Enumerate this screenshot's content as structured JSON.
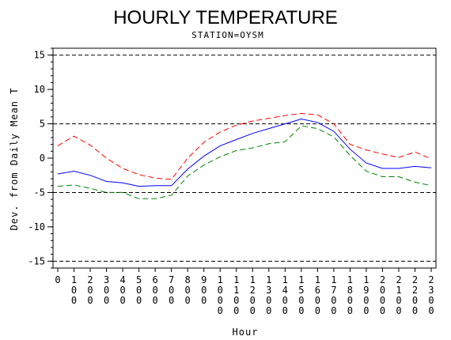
{
  "chart_data": {
    "type": "line",
    "title": "HOURLY TEMPERATURE",
    "subtitle": "STATION=OYSM",
    "xlabel": "Hour",
    "ylabel": "Dev. from Daily Mean T",
    "ylim": [
      -16,
      16
    ],
    "yticks": [
      15,
      10,
      5,
      0,
      -5,
      -10,
      -15
    ],
    "reference_lines": [
      15,
      5,
      -5,
      -15
    ],
    "x": [
      0,
      100,
      200,
      300,
      400,
      500,
      600,
      700,
      800,
      900,
      1000,
      1100,
      1200,
      1300,
      1400,
      1500,
      1600,
      1700,
      1800,
      1900,
      2000,
      2100,
      2200,
      2300
    ],
    "x_tick_labels": [
      "0",
      "100",
      "200",
      "300",
      "400",
      "500",
      "600",
      "700",
      "800",
      "900",
      "1000",
      "1100",
      "1200",
      "1300",
      "1400",
      "1500",
      "1600",
      "1700",
      "1800",
      "1900",
      "2000",
      "2100",
      "2200",
      "2300"
    ],
    "colors": {
      "upper": "#ff0000",
      "mean": "#0000ff",
      "lower": "#008000",
      "reference": "#000000"
    },
    "series": [
      {
        "key": "upper",
        "style": "dashed",
        "values": [
          1.8,
          3.2,
          1.9,
          0.0,
          -1.5,
          -2.4,
          -2.9,
          -3.1,
          0.0,
          2.3,
          3.8,
          4.8,
          5.4,
          5.8,
          6.2,
          6.5,
          6.3,
          5.0,
          2.0,
          1.2,
          0.6,
          0.1,
          0.9,
          -0.1
        ]
      },
      {
        "key": "mean",
        "style": "solid",
        "values": [
          -2.3,
          -1.9,
          -2.5,
          -3.4,
          -3.6,
          -4.1,
          -4.0,
          -4.0,
          -1.6,
          0.3,
          1.8,
          2.7,
          3.6,
          4.3,
          5.0,
          5.7,
          5.2,
          3.9,
          1.3,
          -0.7,
          -1.5,
          -1.5,
          -1.2,
          -1.4
        ]
      },
      {
        "key": "lower",
        "style": "dashed",
        "values": [
          -4.1,
          -3.9,
          -4.4,
          -5.0,
          -5.0,
          -5.9,
          -5.9,
          -5.4,
          -2.6,
          -1.0,
          0.2,
          1.1,
          1.5,
          2.1,
          2.4,
          4.7,
          4.3,
          3.1,
          0.4,
          -1.9,
          -2.7,
          -2.7,
          -3.5,
          -4.0
        ]
      }
    ]
  }
}
